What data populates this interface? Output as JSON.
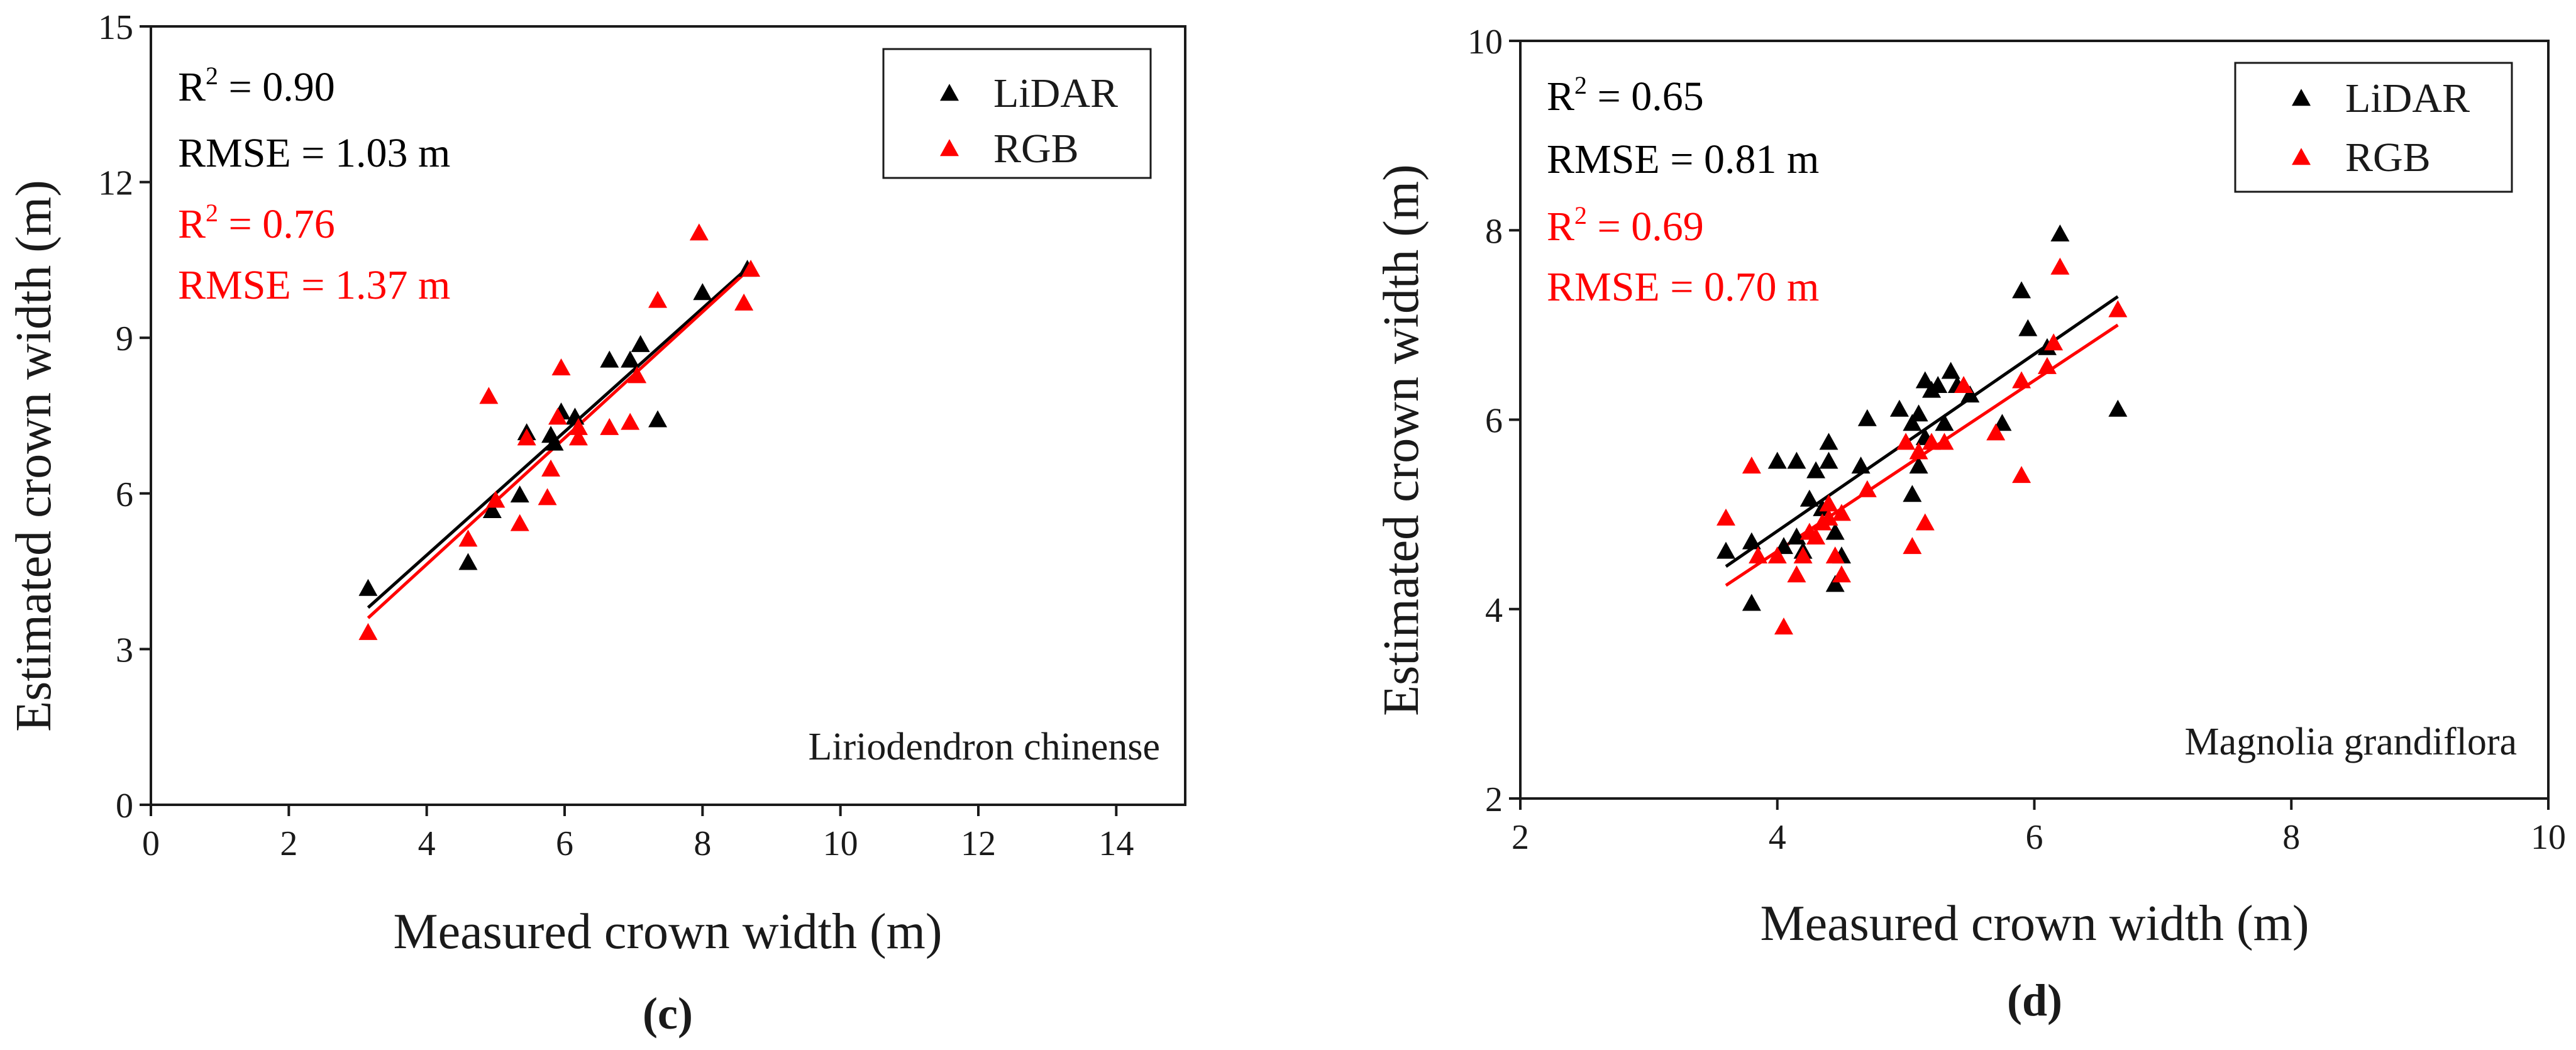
{
  "chart_data": [
    {
      "type": "scatter",
      "panel_label": "(c)",
      "xlabel": "Measured crown width (m)",
      "ylabel": "Estimated crown width (m)",
      "xlim": [
        0,
        15
      ],
      "ylim": [
        0,
        15
      ],
      "xticks": [
        0,
        2,
        4,
        6,
        8,
        10,
        12,
        14
      ],
      "yticks": [
        0,
        3,
        6,
        9,
        12,
        15
      ],
      "species": "Liriodendron  chinense",
      "legend": {
        "position": "top-right",
        "entries": [
          "LiDAR",
          "RGB"
        ]
      },
      "stats": [
        {
          "r2_label": "R",
          "r2_sup": "2",
          "r2_value": " = 0.90",
          "rmse": "RMSE = 1.03 m",
          "color": "#000000"
        },
        {
          "r2_label": "R",
          "r2_sup": "2",
          "r2_value": " = 0.76",
          "rmse": "RMSE = 1.37 m",
          "color": "#ff0000"
        }
      ],
      "series": [
        {
          "name": "LiDAR",
          "color": "#000000",
          "marker": "triangle",
          "points": [
            [
              3.15,
              4.15
            ],
            [
              4.6,
              4.65
            ],
            [
              4.95,
              5.65
            ],
            [
              5.35,
              5.95
            ],
            [
              5.45,
              7.15
            ],
            [
              5.8,
              7.1
            ],
            [
              5.85,
              6.95
            ],
            [
              5.95,
              7.55
            ],
            [
              6.15,
              7.45
            ],
            [
              6.65,
              8.55
            ],
            [
              6.95,
              8.55
            ],
            [
              7.1,
              8.85
            ],
            [
              7.35,
              7.4
            ],
            [
              8.0,
              9.85
            ],
            [
              8.65,
              10.3
            ]
          ],
          "fit": [
            [
              3.15,
              3.8
            ],
            [
              8.7,
              10.4
            ]
          ]
        },
        {
          "name": "RGB",
          "color": "#ff0000",
          "marker": "triangle",
          "points": [
            [
              3.15,
              3.3
            ],
            [
              4.6,
              5.1
            ],
            [
              4.9,
              7.85
            ],
            [
              5.0,
              5.85
            ],
            [
              5.35,
              5.4
            ],
            [
              5.45,
              7.05
            ],
            [
              5.75,
              5.9
            ],
            [
              5.8,
              6.45
            ],
            [
              5.9,
              7.45
            ],
            [
              5.95,
              8.4
            ],
            [
              6.2,
              7.05
            ],
            [
              6.2,
              7.25
            ],
            [
              6.65,
              7.25
            ],
            [
              6.95,
              7.35
            ],
            [
              7.05,
              8.25
            ],
            [
              7.35,
              9.7
            ],
            [
              7.95,
              11.0
            ],
            [
              8.6,
              9.65
            ],
            [
              8.7,
              10.3
            ]
          ],
          "fit": [
            [
              3.15,
              3.6
            ],
            [
              8.7,
              10.35
            ]
          ]
        }
      ]
    },
    {
      "type": "scatter",
      "panel_label": "(d)",
      "xlabel": "Measured crown width (m)",
      "ylabel": "Estimated crown width (m)",
      "xlim": [
        2,
        10
      ],
      "ylim": [
        2,
        10
      ],
      "xticks": [
        2,
        4,
        6,
        8,
        10
      ],
      "yticks": [
        2,
        4,
        6,
        8,
        10
      ],
      "species": "Magnolia grandiflora",
      "legend": {
        "position": "top-right",
        "entries": [
          "LiDAR",
          "RGB"
        ]
      },
      "stats": [
        {
          "r2_label": "R",
          "r2_sup": "2",
          "r2_value": " = 0.65",
          "rmse": "RMSE = 0.81 m",
          "color": "#000000"
        },
        {
          "r2_label": "R",
          "r2_sup": "2",
          "r2_value": " = 0.69",
          "rmse": "RMSE = 0.70 m",
          "color": "#ff0000"
        }
      ],
      "series": [
        {
          "name": "LiDAR",
          "color": "#000000",
          "marker": "triangle",
          "points": [
            [
              3.6,
              4.6
            ],
            [
              3.8,
              4.7
            ],
            [
              3.8,
              4.05
            ],
            [
              4.0,
              5.55
            ],
            [
              4.05,
              4.65
            ],
            [
              4.15,
              5.55
            ],
            [
              4.15,
              4.75
            ],
            [
              4.2,
              4.6
            ],
            [
              4.25,
              5.15
            ],
            [
              4.3,
              5.45
            ],
            [
              4.35,
              5.05
            ],
            [
              4.4,
              5.55
            ],
            [
              4.4,
              5.75
            ],
            [
              4.45,
              4.8
            ],
            [
              4.45,
              4.25
            ],
            [
              4.5,
              4.55
            ],
            [
              4.65,
              5.5
            ],
            [
              4.7,
              6.0
            ],
            [
              4.95,
              6.1
            ],
            [
              5.05,
              5.2
            ],
            [
              5.05,
              5.95
            ],
            [
              5.1,
              5.5
            ],
            [
              5.1,
              6.05
            ],
            [
              5.15,
              5.8
            ],
            [
              5.15,
              6.4
            ],
            [
              5.2,
              6.3
            ],
            [
              5.25,
              6.35
            ],
            [
              5.3,
              5.95
            ],
            [
              5.35,
              6.5
            ],
            [
              5.4,
              6.35
            ],
            [
              5.5,
              6.25
            ],
            [
              5.75,
              5.95
            ],
            [
              5.9,
              7.35
            ],
            [
              5.95,
              6.95
            ],
            [
              6.1,
              6.75
            ],
            [
              6.2,
              7.95
            ],
            [
              6.65,
              6.1
            ]
          ],
          "fit": [
            [
              3.6,
              4.45
            ],
            [
              6.65,
              7.3
            ]
          ]
        },
        {
          "name": "RGB",
          "color": "#ff0000",
          "marker": "triangle",
          "points": [
            [
              3.6,
              4.95
            ],
            [
              3.8,
              5.5
            ],
            [
              3.85,
              4.55
            ],
            [
              4.0,
              4.55
            ],
            [
              4.05,
              3.8
            ],
            [
              4.15,
              4.35
            ],
            [
              4.2,
              4.55
            ],
            [
              4.25,
              4.8
            ],
            [
              4.3,
              4.75
            ],
            [
              4.35,
              4.9
            ],
            [
              4.4,
              5.1
            ],
            [
              4.4,
              4.95
            ],
            [
              4.45,
              4.55
            ],
            [
              4.5,
              4.35
            ],
            [
              4.5,
              5.0
            ],
            [
              4.7,
              5.25
            ],
            [
              5.0,
              5.75
            ],
            [
              5.05,
              4.65
            ],
            [
              5.1,
              5.65
            ],
            [
              5.15,
              4.9
            ],
            [
              5.2,
              5.75
            ],
            [
              5.3,
              5.75
            ],
            [
              5.45,
              6.35
            ],
            [
              5.7,
              5.85
            ],
            [
              5.9,
              6.4
            ],
            [
              5.9,
              5.4
            ],
            [
              6.1,
              6.55
            ],
            [
              6.15,
              6.8
            ],
            [
              6.2,
              7.6
            ],
            [
              6.65,
              7.15
            ]
          ],
          "fit": [
            [
              3.6,
              4.25
            ],
            [
              6.65,
              7.0
            ]
          ]
        }
      ]
    }
  ]
}
